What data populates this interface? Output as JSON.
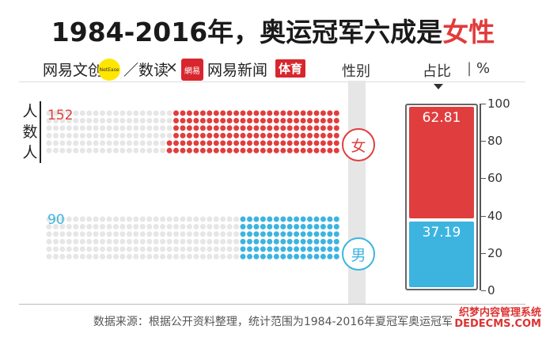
{
  "title": {
    "main": "1984-2016年，奥运冠军六成是",
    "highlight": "女性"
  },
  "brand": {
    "left": "网易文创",
    "dot": "NetEase",
    "mid": "／数读",
    "x": "×",
    "logo": "網易",
    "right": "网易新闻",
    "sport": "体育"
  },
  "headers": {
    "gender": "性别",
    "ratio": "占比",
    "unit": "%"
  },
  "ylabel": "人数人",
  "source": "数据来源：根据公开资料整理，统计范围为1984-2016年夏冠军奥运冠军",
  "watermark": {
    "line1": "织梦内容管理系统",
    "line2": "DEDECMS.COM"
  },
  "colors": {
    "female": "#e03e3e",
    "male": "#3db4e0",
    "empty": "#e6e6e6"
  },
  "chart_data": [
    {
      "type": "bar",
      "title": "",
      "ylabel": "人数人",
      "categories": [
        "女",
        "男"
      ],
      "values": [
        152,
        90
      ],
      "grid_total": 264
    },
    {
      "type": "bar",
      "stacked": true,
      "ylabel": "%",
      "ylim": [
        0,
        100
      ],
      "yticks": [
        0,
        20,
        40,
        60,
        80,
        100
      ],
      "categories": [
        "女",
        "男"
      ],
      "values": [
        62.81,
        37.19
      ],
      "labels": [
        "62.81",
        "37.19"
      ]
    }
  ]
}
